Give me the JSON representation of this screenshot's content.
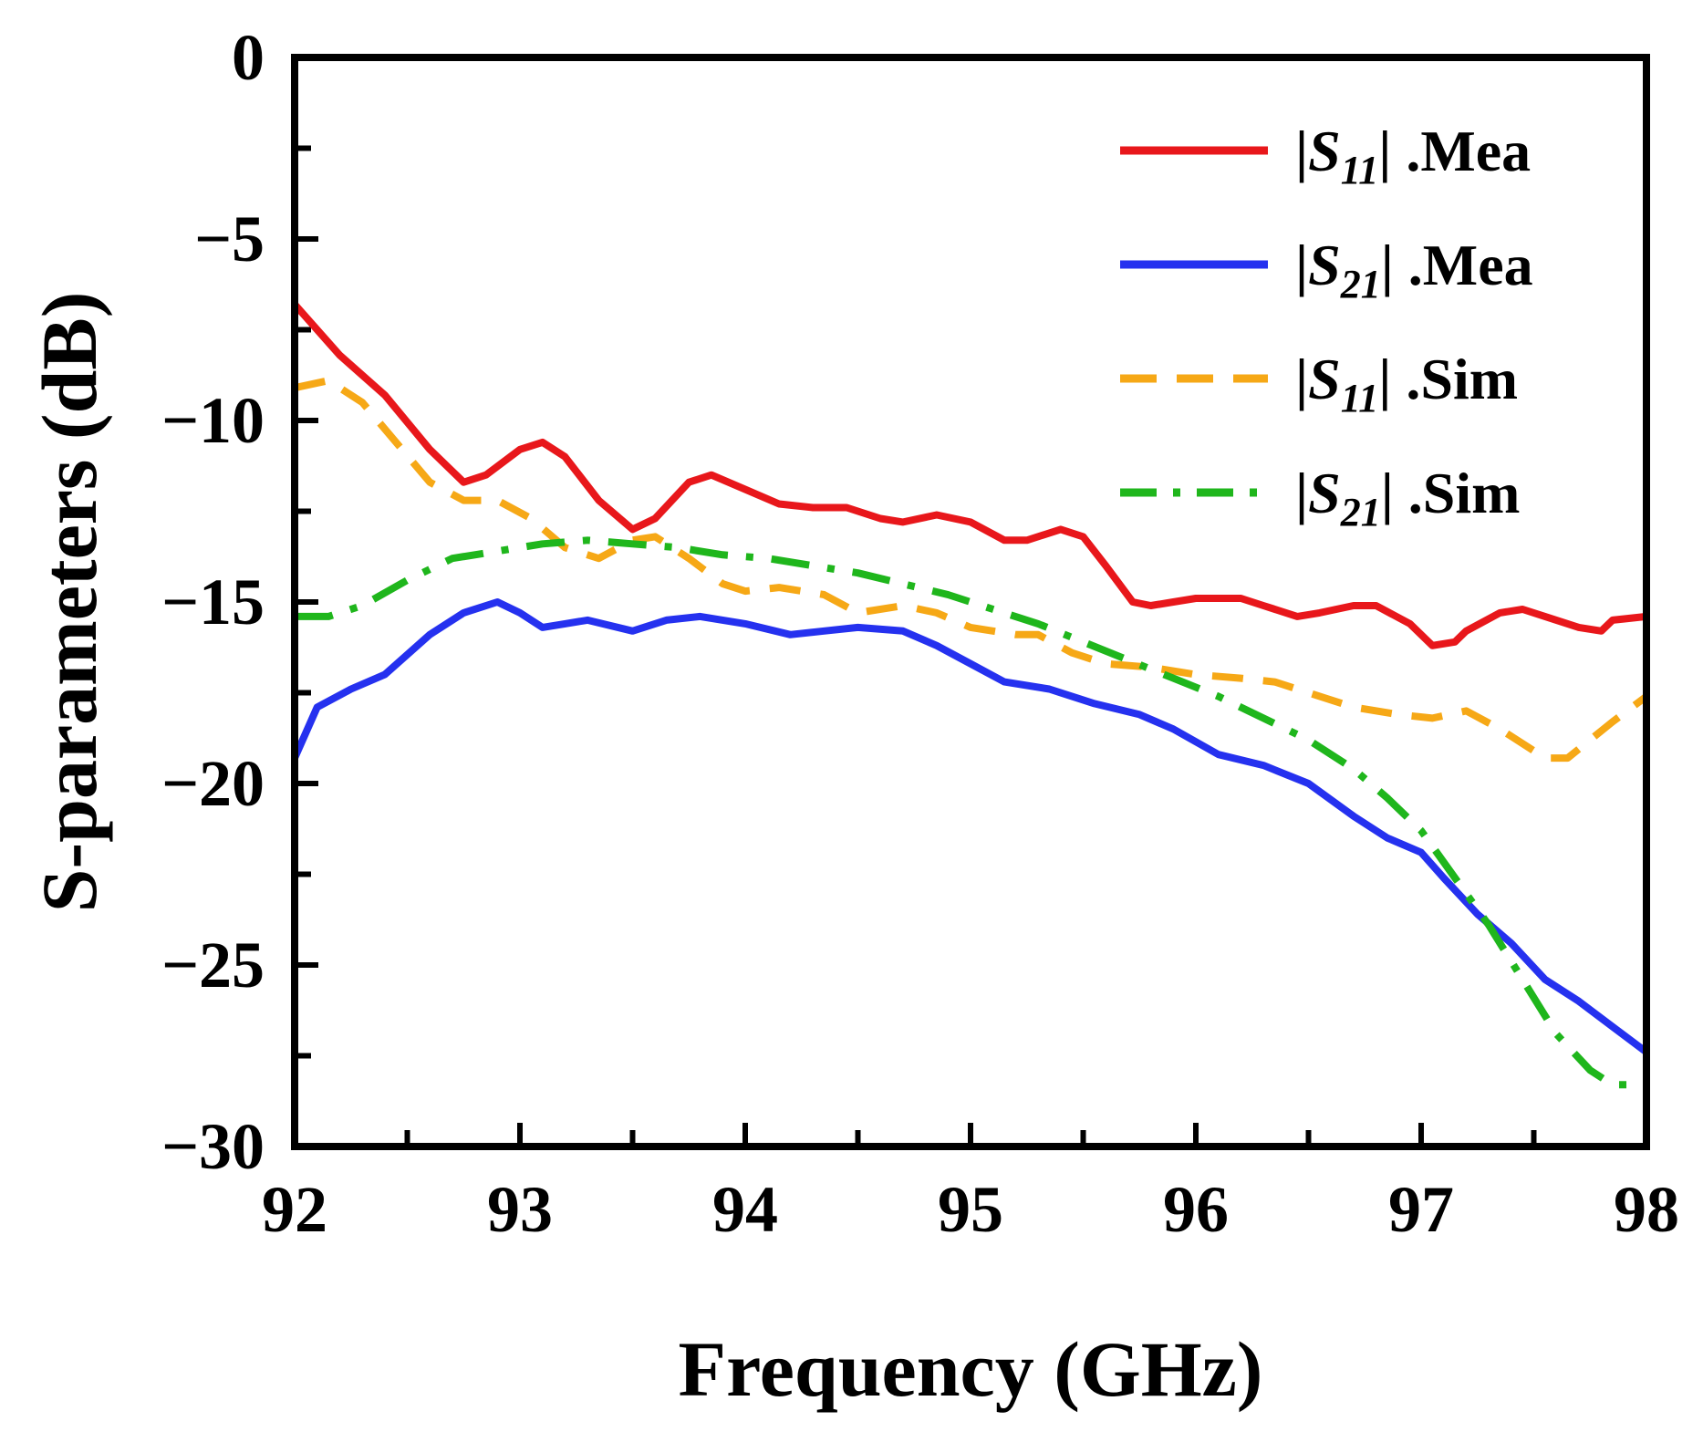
{
  "chart_data": {
    "type": "line",
    "title": "",
    "xlabel": "Frequency (GHz)",
    "ylabel": "S-parameters (dB)",
    "xlim": [
      92,
      98
    ],
    "ylim": [
      -30,
      0
    ],
    "x_ticks": [
      92,
      93,
      94,
      95,
      96,
      97,
      98
    ],
    "x_tick_labels": [
      "92",
      "93",
      "94",
      "95",
      "96",
      "97",
      "98"
    ],
    "y_ticks": [
      0,
      -5,
      -10,
      -15,
      -20,
      -25,
      -30
    ],
    "y_tick_labels": [
      "0",
      "−5",
      "−10",
      "−15",
      "−20",
      "−25",
      "−30"
    ],
    "grid": false,
    "legend_position": "top-right",
    "series": [
      {
        "name": "|S11| .Mea",
        "legend": {
          "pre": "|",
          "s": "S",
          "sub": "11",
          "post": "| .Mea"
        },
        "color": "#e8171b",
        "style": "solid",
        "points": [
          [
            92.0,
            -6.8
          ],
          [
            92.2,
            -8.2
          ],
          [
            92.4,
            -9.3
          ],
          [
            92.6,
            -10.8
          ],
          [
            92.75,
            -11.7
          ],
          [
            92.85,
            -11.5
          ],
          [
            93.0,
            -10.8
          ],
          [
            93.1,
            -10.6
          ],
          [
            93.2,
            -11.0
          ],
          [
            93.35,
            -12.2
          ],
          [
            93.5,
            -13.0
          ],
          [
            93.6,
            -12.7
          ],
          [
            93.75,
            -11.7
          ],
          [
            93.85,
            -11.5
          ],
          [
            94.0,
            -11.9
          ],
          [
            94.15,
            -12.3
          ],
          [
            94.3,
            -12.4
          ],
          [
            94.45,
            -12.4
          ],
          [
            94.6,
            -12.7
          ],
          [
            94.7,
            -12.8
          ],
          [
            94.85,
            -12.6
          ],
          [
            95.0,
            -12.8
          ],
          [
            95.15,
            -13.3
          ],
          [
            95.25,
            -13.3
          ],
          [
            95.4,
            -13.0
          ],
          [
            95.5,
            -13.2
          ],
          [
            95.6,
            -14.0
          ],
          [
            95.72,
            -15.0
          ],
          [
            95.8,
            -15.1
          ],
          [
            95.9,
            -15.0
          ],
          [
            96.0,
            -14.9
          ],
          [
            96.2,
            -14.9
          ],
          [
            96.3,
            -15.1
          ],
          [
            96.45,
            -15.4
          ],
          [
            96.55,
            -15.3
          ],
          [
            96.7,
            -15.1
          ],
          [
            96.8,
            -15.1
          ],
          [
            96.95,
            -15.6
          ],
          [
            97.05,
            -16.2
          ],
          [
            97.15,
            -16.1
          ],
          [
            97.2,
            -15.8
          ],
          [
            97.35,
            -15.3
          ],
          [
            97.45,
            -15.2
          ],
          [
            97.55,
            -15.4
          ],
          [
            97.7,
            -15.7
          ],
          [
            97.8,
            -15.8
          ],
          [
            97.85,
            -15.5
          ],
          [
            98.0,
            -15.4
          ]
        ]
      },
      {
        "name": "|S21| .Mea",
        "legend": {
          "pre": "|",
          "s": "S",
          "sub": "21",
          "post": "| .Mea"
        },
        "color": "#2531ef",
        "style": "solid",
        "points": [
          [
            92.0,
            -19.3
          ],
          [
            92.1,
            -17.9
          ],
          [
            92.25,
            -17.4
          ],
          [
            92.4,
            -17.0
          ],
          [
            92.6,
            -15.9
          ],
          [
            92.75,
            -15.3
          ],
          [
            92.9,
            -15.0
          ],
          [
            93.0,
            -15.3
          ],
          [
            93.1,
            -15.7
          ],
          [
            93.2,
            -15.6
          ],
          [
            93.3,
            -15.5
          ],
          [
            93.5,
            -15.8
          ],
          [
            93.65,
            -15.5
          ],
          [
            93.8,
            -15.4
          ],
          [
            94.0,
            -15.6
          ],
          [
            94.2,
            -15.9
          ],
          [
            94.35,
            -15.8
          ],
          [
            94.5,
            -15.7
          ],
          [
            94.7,
            -15.8
          ],
          [
            94.85,
            -16.2
          ],
          [
            95.0,
            -16.7
          ],
          [
            95.15,
            -17.2
          ],
          [
            95.35,
            -17.4
          ],
          [
            95.55,
            -17.8
          ],
          [
            95.75,
            -18.1
          ],
          [
            95.9,
            -18.5
          ],
          [
            96.1,
            -19.2
          ],
          [
            96.3,
            -19.5
          ],
          [
            96.5,
            -20.0
          ],
          [
            96.7,
            -20.9
          ],
          [
            96.85,
            -21.5
          ],
          [
            97.0,
            -21.9
          ],
          [
            97.1,
            -22.6
          ],
          [
            97.25,
            -23.6
          ],
          [
            97.4,
            -24.4
          ],
          [
            97.55,
            -25.4
          ],
          [
            97.7,
            -26.0
          ],
          [
            97.85,
            -26.7
          ],
          [
            98.0,
            -27.4
          ]
        ]
      },
      {
        "name": "|S11| .Sim",
        "legend": {
          "pre": "|",
          "s": "S",
          "sub": "11",
          "post": "| .Sim"
        },
        "color": "#f6a816",
        "style": "dashed",
        "points": [
          [
            92.0,
            -9.1
          ],
          [
            92.15,
            -8.9
          ],
          [
            92.3,
            -9.5
          ],
          [
            92.45,
            -10.6
          ],
          [
            92.6,
            -11.7
          ],
          [
            92.75,
            -12.2
          ],
          [
            92.9,
            -12.2
          ],
          [
            93.05,
            -12.7
          ],
          [
            93.2,
            -13.5
          ],
          [
            93.35,
            -13.8
          ],
          [
            93.5,
            -13.3
          ],
          [
            93.6,
            -13.2
          ],
          [
            93.75,
            -13.8
          ],
          [
            93.9,
            -14.5
          ],
          [
            94.0,
            -14.7
          ],
          [
            94.15,
            -14.6
          ],
          [
            94.35,
            -14.8
          ],
          [
            94.5,
            -15.3
          ],
          [
            94.7,
            -15.1
          ],
          [
            94.85,
            -15.3
          ],
          [
            95.0,
            -15.7
          ],
          [
            95.2,
            -15.9
          ],
          [
            95.3,
            -15.9
          ],
          [
            95.45,
            -16.4
          ],
          [
            95.6,
            -16.7
          ],
          [
            95.8,
            -16.8
          ],
          [
            96.0,
            -17.0
          ],
          [
            96.2,
            -17.1
          ],
          [
            96.35,
            -17.2
          ],
          [
            96.5,
            -17.5
          ],
          [
            96.7,
            -17.9
          ],
          [
            96.9,
            -18.1
          ],
          [
            97.05,
            -18.2
          ],
          [
            97.2,
            -18.0
          ],
          [
            97.35,
            -18.5
          ],
          [
            97.55,
            -19.3
          ],
          [
            97.65,
            -19.3
          ],
          [
            97.85,
            -18.3
          ],
          [
            98.0,
            -17.6
          ]
        ]
      },
      {
        "name": "|S21| .Sim",
        "legend": {
          "pre": "|",
          "s": "S",
          "sub": "21",
          "post": "| .Sim"
        },
        "color": "#1fb61c",
        "style": "dashdot",
        "points": [
          [
            92.0,
            -15.4
          ],
          [
            92.15,
            -15.4
          ],
          [
            92.3,
            -15.1
          ],
          [
            92.5,
            -14.4
          ],
          [
            92.7,
            -13.8
          ],
          [
            92.9,
            -13.6
          ],
          [
            93.1,
            -13.4
          ],
          [
            93.3,
            -13.3
          ],
          [
            93.5,
            -13.4
          ],
          [
            93.7,
            -13.5
          ],
          [
            93.9,
            -13.7
          ],
          [
            94.1,
            -13.8
          ],
          [
            94.3,
            -14.0
          ],
          [
            94.5,
            -14.2
          ],
          [
            94.7,
            -14.5
          ],
          [
            94.9,
            -14.8
          ],
          [
            95.1,
            -15.2
          ],
          [
            95.3,
            -15.6
          ],
          [
            95.5,
            -16.1
          ],
          [
            95.7,
            -16.6
          ],
          [
            95.9,
            -17.1
          ],
          [
            96.1,
            -17.6
          ],
          [
            96.3,
            -18.2
          ],
          [
            96.5,
            -18.8
          ],
          [
            96.7,
            -19.6
          ],
          [
            96.85,
            -20.4
          ],
          [
            97.0,
            -21.3
          ],
          [
            97.15,
            -22.6
          ],
          [
            97.3,
            -23.9
          ],
          [
            97.45,
            -25.4
          ],
          [
            97.6,
            -26.9
          ],
          [
            97.75,
            -27.9
          ],
          [
            97.85,
            -28.3
          ],
          [
            98.0,
            -28.3
          ]
        ]
      }
    ]
  }
}
